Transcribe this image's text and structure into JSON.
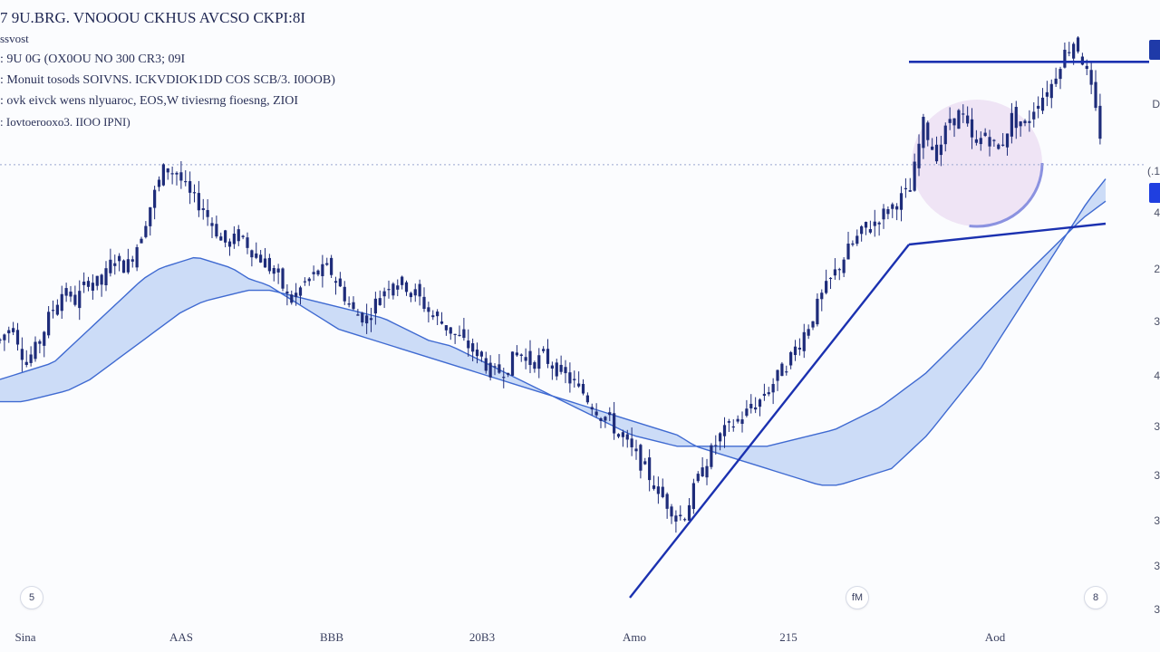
{
  "legend": {
    "lines": [
      "7 9U.BRG. VNOOOU CKHUS AVCSO CKPI:8I",
      "ssvost",
      ": 9U  0G  (OX0OU NO 300  CR3;  09I",
      ": Monuit  tosods  SOIVNS.  ICKVDIOK1DD  COS  SCB/3. I0OOB)",
      ": ovk  eivck  wens  nlyuaroc,  EOS,W  tiviesrng  fioesng,  ZIOI",
      ": Iovtoerooxo3.  IIOO  IPNI)"
    ]
  },
  "price_axis": {
    "ticks": [
      "D",
      "(.1",
      "4",
      "2",
      "3",
      "4",
      "3",
      "3",
      "3",
      "3",
      "3"
    ],
    "badge_color": "#1f3fe0",
    "cap_color": "#1f3aa8"
  },
  "time_axis": {
    "ticks": [
      "Sina",
      "AAS",
      "BBB",
      "20B3",
      "Amo",
      "215",
      "Aod"
    ]
  },
  "buttons": {
    "left": "5",
    "middle": "fM",
    "right": "8"
  },
  "colors": {
    "candle": "#1e2c7a",
    "band_fill": "#bcd2f4",
    "band_edge": "#3f6ad1",
    "trendline": "#1b31b0",
    "highlight_fill": "#ecdff3",
    "highlight_edge": "#8b92e0",
    "crosshair": "#9aa6d0"
  },
  "chart_data": {
    "type": "candlestick",
    "price_range": [
      0,
      100
    ],
    "close_series": [
      47,
      50,
      43,
      46,
      52,
      56,
      54,
      58,
      57,
      62,
      60,
      65,
      72,
      78,
      77,
      73,
      71,
      67,
      64,
      66,
      63,
      61,
      58,
      54,
      57,
      59,
      60,
      56,
      52,
      51,
      55,
      58,
      57,
      55,
      52,
      50,
      48,
      46,
      44,
      41,
      42,
      45,
      43,
      44,
      42,
      40,
      38,
      35,
      33,
      30,
      27,
      24,
      20,
      17,
      15,
      21,
      26,
      30,
      32,
      34,
      36,
      39,
      42,
      46,
      50,
      55,
      59,
      63,
      66,
      68,
      70,
      72,
      74,
      86,
      80,
      86,
      88,
      82,
      84,
      81,
      87,
      85,
      90,
      92,
      98,
      101,
      95,
      84
    ],
    "band_upper": [
      40,
      41,
      42,
      43,
      46,
      49,
      52,
      55,
      58,
      60,
      61,
      62,
      61,
      60,
      58,
      57,
      55,
      53,
      51,
      49,
      48,
      47,
      46,
      45,
      44,
      43,
      42,
      41,
      40,
      39,
      38,
      37,
      36,
      35,
      34,
      33,
      32,
      31,
      30,
      28,
      27,
      26,
      25,
      24,
      23,
      22,
      21,
      21,
      22,
      23,
      24,
      27,
      30,
      34,
      38,
      42,
      47,
      52,
      57,
      62,
      67,
      72,
      76
    ],
    "band_lower": [
      36,
      36,
      37,
      38,
      40,
      43,
      46,
      49,
      52,
      54,
      55,
      56,
      56,
      55,
      54,
      53,
      52,
      51,
      49,
      47,
      46,
      44,
      42,
      40,
      38,
      36,
      34,
      32,
      30,
      29,
      28,
      28,
      28,
      28,
      28,
      29,
      30,
      31,
      33,
      35,
      38,
      41,
      45,
      49,
      53,
      57,
      61,
      65,
      69,
      72
    ],
    "trendline_1": {
      "from": [
        0,
        12
      ],
      "to": [
        1,
        64
      ]
    },
    "trendline_2": {
      "from": [
        0,
        64
      ],
      "to": [
        1,
        70
      ]
    },
    "resistance_level": 98,
    "crosshair_level": 74
  }
}
